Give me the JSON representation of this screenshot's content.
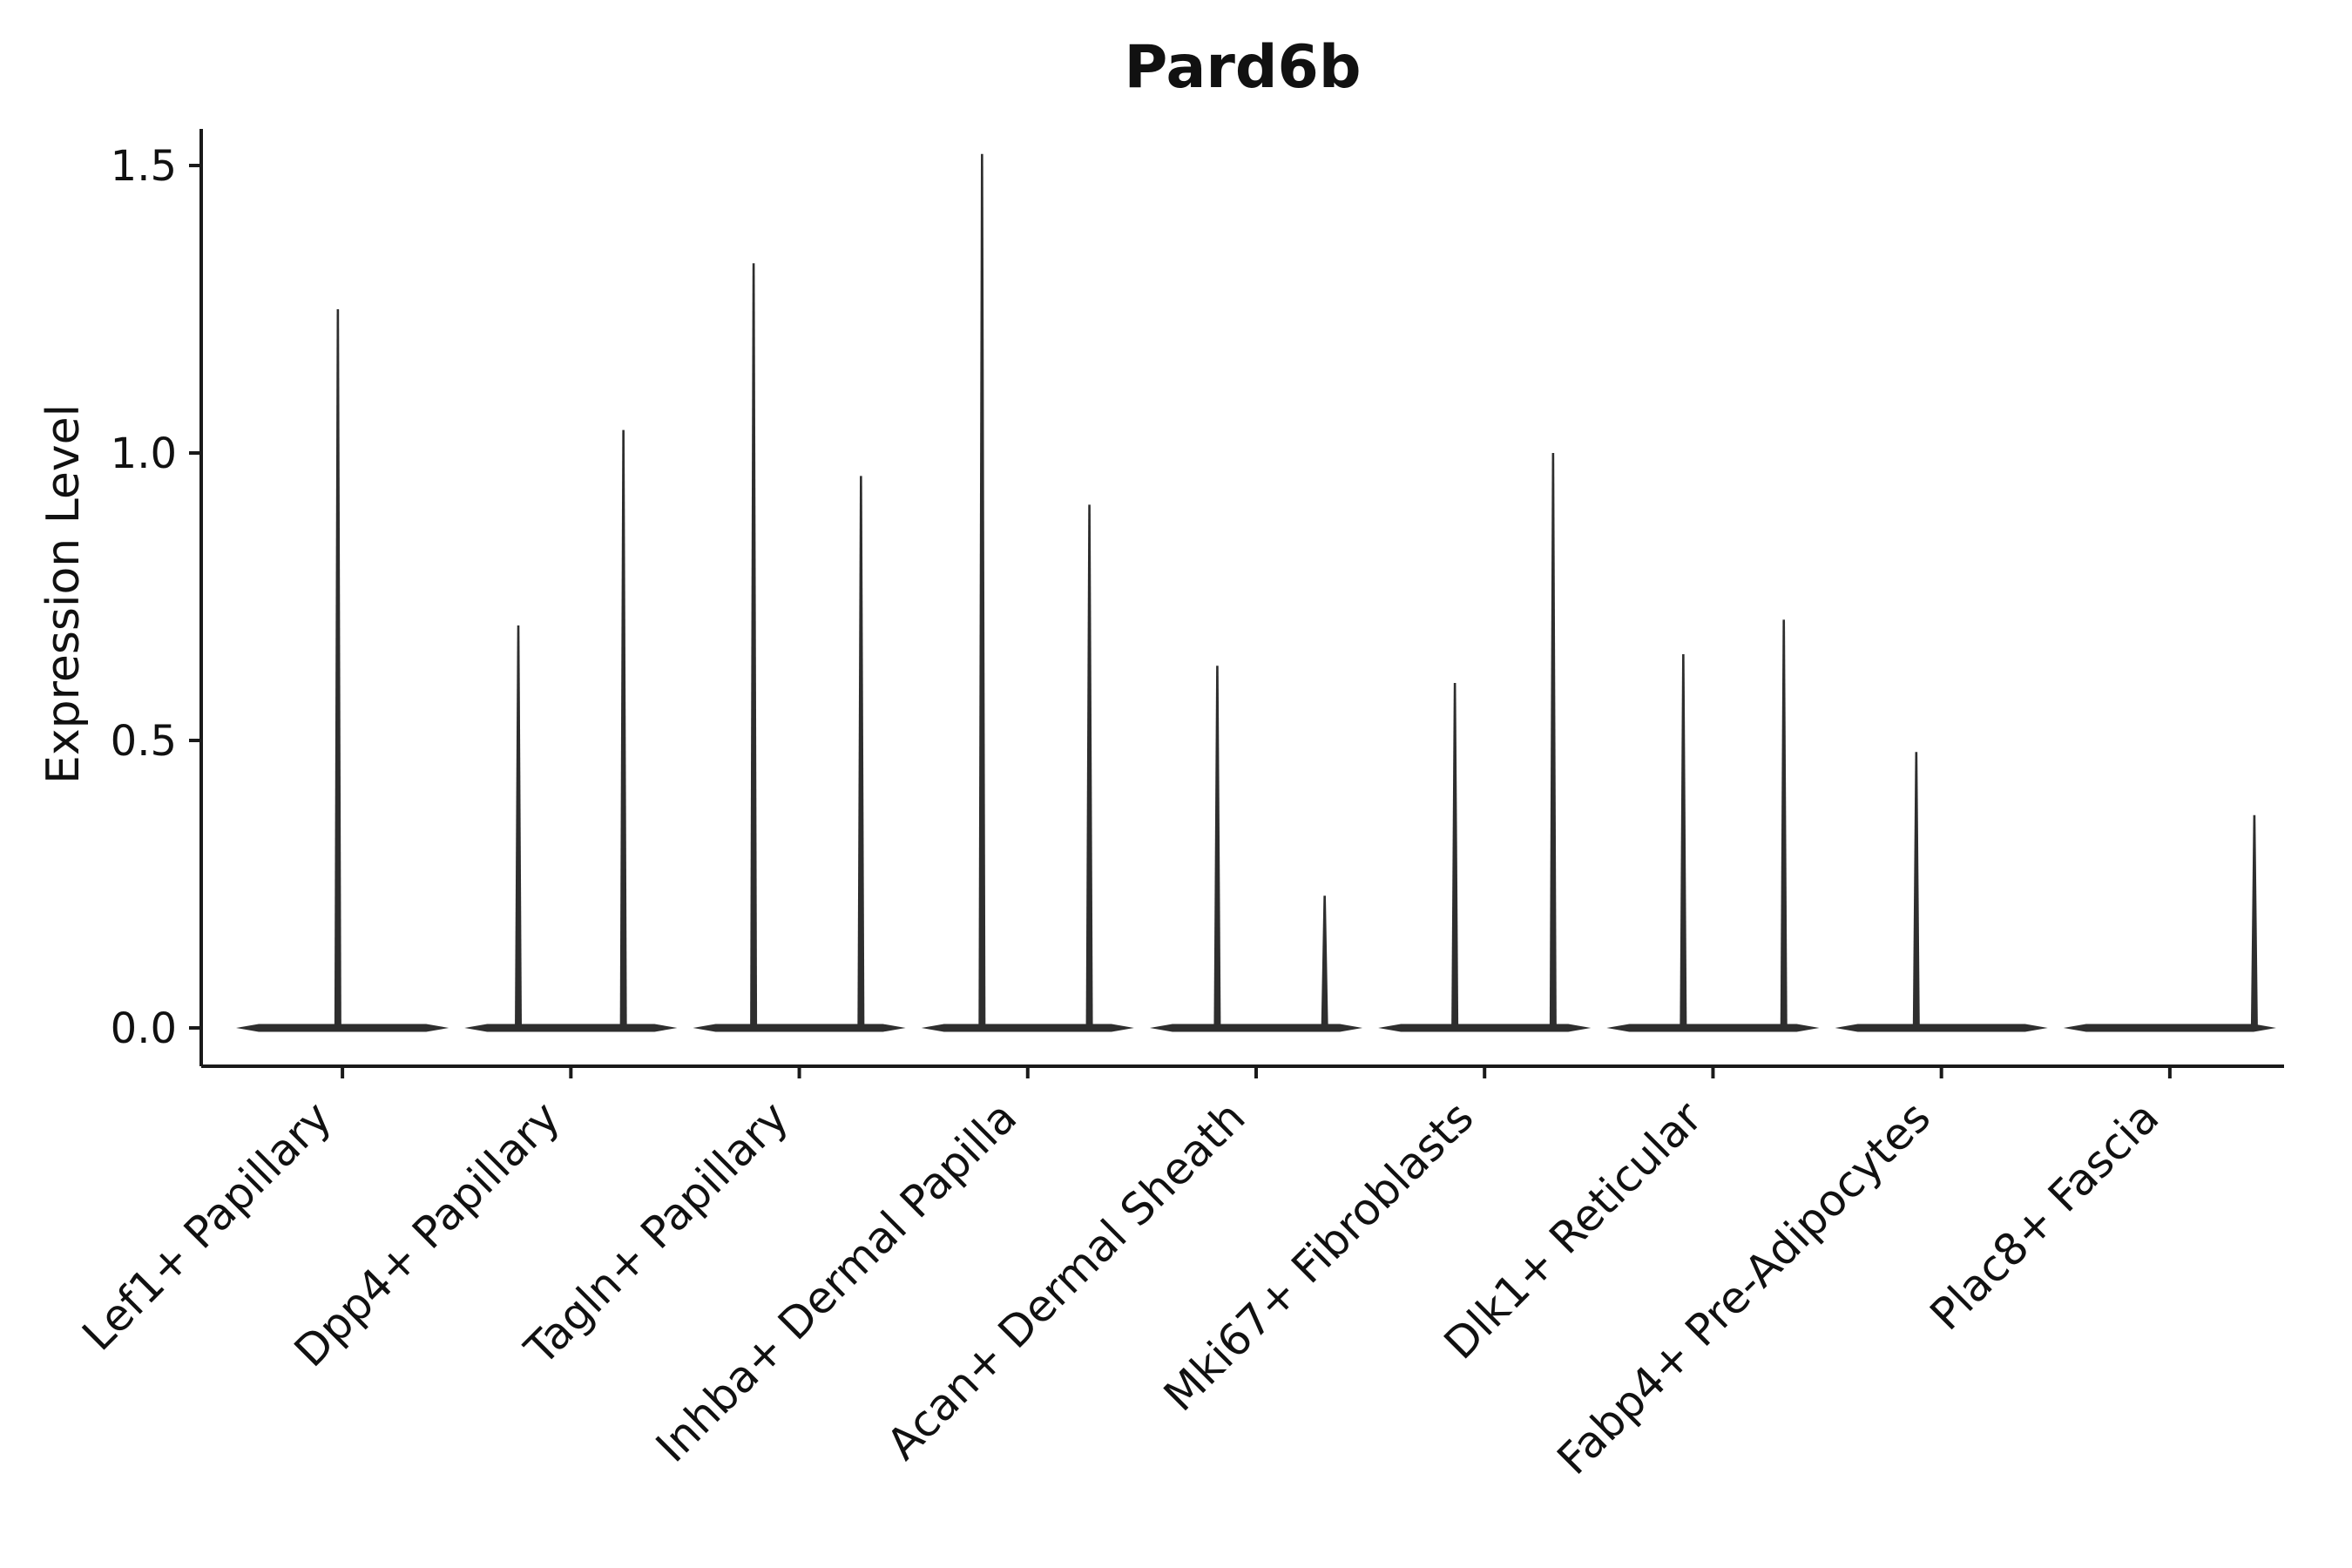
{
  "chart_data": {
    "type": "violin",
    "title": "Pard6b",
    "xlabel": "",
    "ylabel": "Expression Level",
    "ylim": [
      -0.07,
      1.56
    ],
    "yticks": [
      0,
      0.5,
      1,
      1.5
    ],
    "ytick_labels": [
      "0.0",
      "0.5",
      "1.0",
      "1.5"
    ],
    "grid": false,
    "legend": "none",
    "color": "#2e2e2e",
    "axis_color": "#1a1a1a",
    "categories": [
      "Lef1+ Papillary",
      "Dpp4+ Papillary",
      "Tagln+ Papillary",
      "Inhba+ Dermal Papilla",
      "Acan+ Dermal Sheath",
      "Mki67+ Fibroblasts",
      "Dlk1+ Reticular",
      "Fabp4+ Pre-Adipocytes",
      "Plac8+ Fascia"
    ],
    "violins": [
      {
        "category": "Lef1+ Papillary",
        "spikes": [
          {
            "pos": 0.48,
            "max": 1.25
          }
        ]
      },
      {
        "category": "Dpp4+ Papillary",
        "spikes": [
          {
            "pos": 0.27,
            "max": 0.7
          },
          {
            "pos": 0.73,
            "max": 1.04
          }
        ]
      },
      {
        "category": "Tagln+ Papillary",
        "spikes": [
          {
            "pos": 0.3,
            "max": 1.33
          },
          {
            "pos": 0.77,
            "max": 0.96
          }
        ]
      },
      {
        "category": "Inhba+ Dermal Papilla",
        "spikes": [
          {
            "pos": 0.3,
            "max": 1.52
          },
          {
            "pos": 0.77,
            "max": 0.91
          }
        ]
      },
      {
        "category": "Acan+ Dermal Sheath",
        "spikes": [
          {
            "pos": 0.33,
            "max": 0.63
          },
          {
            "pos": 0.8,
            "max": 0.23
          }
        ]
      },
      {
        "category": "Mki67+ Fibroblasts",
        "spikes": [
          {
            "pos": 0.37,
            "max": 0.6
          },
          {
            "pos": 0.8,
            "max": 1.0
          }
        ]
      },
      {
        "category": "Dlk1+ Reticular",
        "spikes": [
          {
            "pos": 0.37,
            "max": 0.65
          },
          {
            "pos": 0.81,
            "max": 0.71
          }
        ]
      },
      {
        "category": "Fabp4+ Pre-Adipocytes",
        "spikes": [
          {
            "pos": 0.39,
            "max": 0.48
          }
        ]
      },
      {
        "category": "Plac8+ Fascia",
        "spikes": [
          {
            "pos": 0.87,
            "max": 0.37
          }
        ]
      }
    ]
  }
}
